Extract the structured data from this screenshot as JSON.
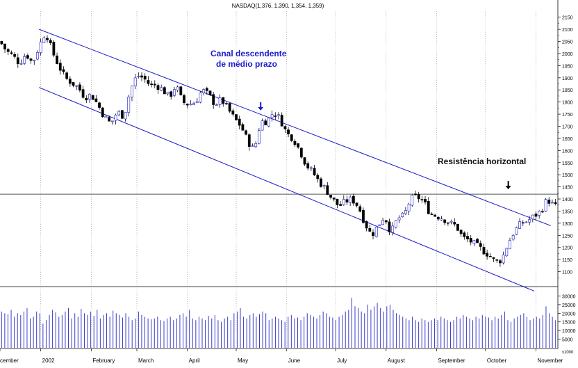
{
  "chart_data": {
    "type": "candlestick",
    "title": "NASDAQ(1,376, 1,390, 1,354, 1,359)",
    "price_axis": {
      "ylim": [
        1050,
        2175
      ],
      "ticks": [
        1100,
        1150,
        1200,
        1250,
        1300,
        1350,
        1400,
        1450,
        1500,
        1550,
        1600,
        1650,
        1700,
        1750,
        1800,
        1850,
        1900,
        1950,
        2000,
        2050,
        2100,
        2150
      ]
    },
    "volume_axis": {
      "ylim": [
        0,
        33000
      ],
      "ticks": [
        5000,
        10000,
        15000,
        20000,
        25000,
        30000
      ],
      "extra_label": "x1000"
    },
    "x_labels": [
      {
        "label": "cember",
        "day": 0
      },
      {
        "label": "2002",
        "day": 25
      },
      {
        "label": "February",
        "day": 56
      },
      {
        "label": "March",
        "day": 84
      },
      {
        "label": "April",
        "day": 115
      },
      {
        "label": "May",
        "day": 145
      },
      {
        "label": "June",
        "day": 176
      },
      {
        "label": "July",
        "day": 206
      },
      {
        "label": "August",
        "day": 237
      },
      {
        "label": "September",
        "day": 268
      },
      {
        "label": "October",
        "day": 298
      },
      {
        "label": "November",
        "day": 329
      }
    ],
    "x_range_days": [
      0,
      342
    ],
    "anchors": [
      [
        0,
        2050
      ],
      [
        4,
        2010
      ],
      [
        8,
        1990
      ],
      [
        12,
        1960
      ],
      [
        16,
        2000
      ],
      [
        20,
        1960
      ],
      [
        24,
        2030
      ],
      [
        28,
        2090
      ],
      [
        32,
        2010
      ],
      [
        36,
        1950
      ],
      [
        40,
        1900
      ],
      [
        44,
        1880
      ],
      [
        48,
        1860
      ],
      [
        52,
        1820
      ],
      [
        56,
        1830
      ],
      [
        60,
        1790
      ],
      [
        64,
        1740
      ],
      [
        68,
        1710
      ],
      [
        72,
        1760
      ],
      [
        76,
        1740
      ],
      [
        80,
        1850
      ],
      [
        84,
        1910
      ],
      [
        88,
        1900
      ],
      [
        92,
        1870
      ],
      [
        96,
        1870
      ],
      [
        100,
        1850
      ],
      [
        104,
        1820
      ],
      [
        108,
        1870
      ],
      [
        112,
        1800
      ],
      [
        116,
        1790
      ],
      [
        120,
        1800
      ],
      [
        124,
        1850
      ],
      [
        128,
        1830
      ],
      [
        132,
        1790
      ],
      [
        136,
        1810
      ],
      [
        140,
        1770
      ],
      [
        144,
        1730
      ],
      [
        148,
        1700
      ],
      [
        152,
        1640
      ],
      [
        156,
        1600
      ],
      [
        160,
        1720
      ],
      [
        164,
        1720
      ],
      [
        168,
        1760
      ],
      [
        172,
        1730
      ],
      [
        176,
        1670
      ],
      [
        180,
        1650
      ],
      [
        184,
        1600
      ],
      [
        188,
        1540
      ],
      [
        192,
        1510
      ],
      [
        196,
        1470
      ],
      [
        200,
        1440
      ],
      [
        204,
        1400
      ],
      [
        208,
        1370
      ],
      [
        212,
        1390
      ],
      [
        216,
        1400
      ],
      [
        220,
        1370
      ],
      [
        224,
        1300
      ],
      [
        228,
        1250
      ],
      [
        232,
        1290
      ],
      [
        236,
        1330
      ],
      [
        240,
        1260
      ],
      [
        244,
        1320
      ],
      [
        248,
        1330
      ],
      [
        252,
        1400
      ],
      [
        256,
        1410
      ],
      [
        260,
        1390
      ],
      [
        264,
        1340
      ],
      [
        268,
        1330
      ],
      [
        272,
        1320
      ],
      [
        276,
        1300
      ],
      [
        280,
        1290
      ],
      [
        284,
        1240
      ],
      [
        288,
        1230
      ],
      [
        292,
        1210
      ],
      [
        296,
        1190
      ],
      [
        300,
        1170
      ],
      [
        304,
        1140
      ],
      [
        308,
        1150
      ],
      [
        312,
        1220
      ],
      [
        316,
        1270
      ],
      [
        320,
        1300
      ],
      [
        324,
        1310
      ],
      [
        328,
        1330
      ],
      [
        332,
        1350
      ],
      [
        336,
        1400
      ],
      [
        340,
        1370
      ]
    ],
    "volume_values": [
      21000,
      20000,
      19500,
      22000,
      18000,
      20000,
      19000,
      21000,
      23000,
      17000,
      18000,
      21000,
      20000,
      14000,
      16000,
      19000,
      22000,
      20500,
      18000,
      19000,
      21000,
      23000,
      17000,
      20000,
      18000,
      22500,
      20000,
      19000,
      21000,
      18500,
      22000,
      17000,
      19000,
      20000,
      18000,
      21500,
      20000,
      19000,
      17500,
      20000,
      18000,
      16000,
      17000,
      21000,
      19000,
      18000,
      17000,
      16500,
      17000,
      18000,
      16000,
      15500,
      17000,
      18000,
      16000,
      17000,
      19000,
      20000,
      18000,
      22000,
      17000,
      16000,
      18000,
      17000,
      16000,
      18500,
      17000,
      19000,
      16000,
      15000,
      17000,
      18000,
      16000,
      20000,
      21000,
      23000,
      18000,
      17000,
      19000,
      20000,
      18000,
      19500,
      21000,
      20000,
      16000,
      17000,
      18000,
      17000,
      16000,
      15000,
      18000,
      19000,
      17000,
      17500,
      16000,
      18000,
      20000,
      19000,
      18000,
      17000,
      19000,
      21000,
      20000,
      18000,
      17500,
      16000,
      18000,
      19000,
      21000,
      22000,
      29000,
      24000,
      23000,
      21000,
      20000,
      25000,
      22000,
      24000,
      26000,
      23000,
      21000,
      24000,
      25000,
      22000,
      20000,
      19000,
      18000,
      17000,
      16000,
      18000,
      16000,
      15000,
      17000,
      16000,
      15000,
      16000,
      17000,
      16000,
      18000,
      17000,
      16000,
      15000,
      16000,
      18000,
      17000,
      19000,
      18000,
      17000,
      16000,
      18000,
      17000,
      19000,
      18000,
      17500,
      16000,
      18000,
      17000,
      19000,
      21000,
      16000,
      15000,
      17000,
      18000,
      19000,
      20000,
      18000,
      16000,
      17000,
      18000,
      17000,
      19000,
      24000,
      20000,
      18000,
      16000
    ],
    "annotations": [
      {
        "text": "Canal descendente",
        "role": "channel-title-line-1"
      },
      {
        "text": "de médio prazo",
        "role": "channel-title-line-2"
      },
      {
        "text": "Resistência horizontal",
        "role": "resistance-label"
      }
    ],
    "resistance_level": 1420,
    "channel_upper": [
      [
        24,
        2100
      ],
      [
        338,
        1290
      ]
    ],
    "channel_lower": [
      [
        24,
        1860
      ],
      [
        328,
        1020
      ]
    ],
    "channel_color": "#1a1acd",
    "annotation_color": "#1a1acd",
    "candle_up_color": "#ffffff",
    "candle_down_color": "#000000",
    "volume_color": "#3a3ac8",
    "grid": "vertical-dotted"
  }
}
